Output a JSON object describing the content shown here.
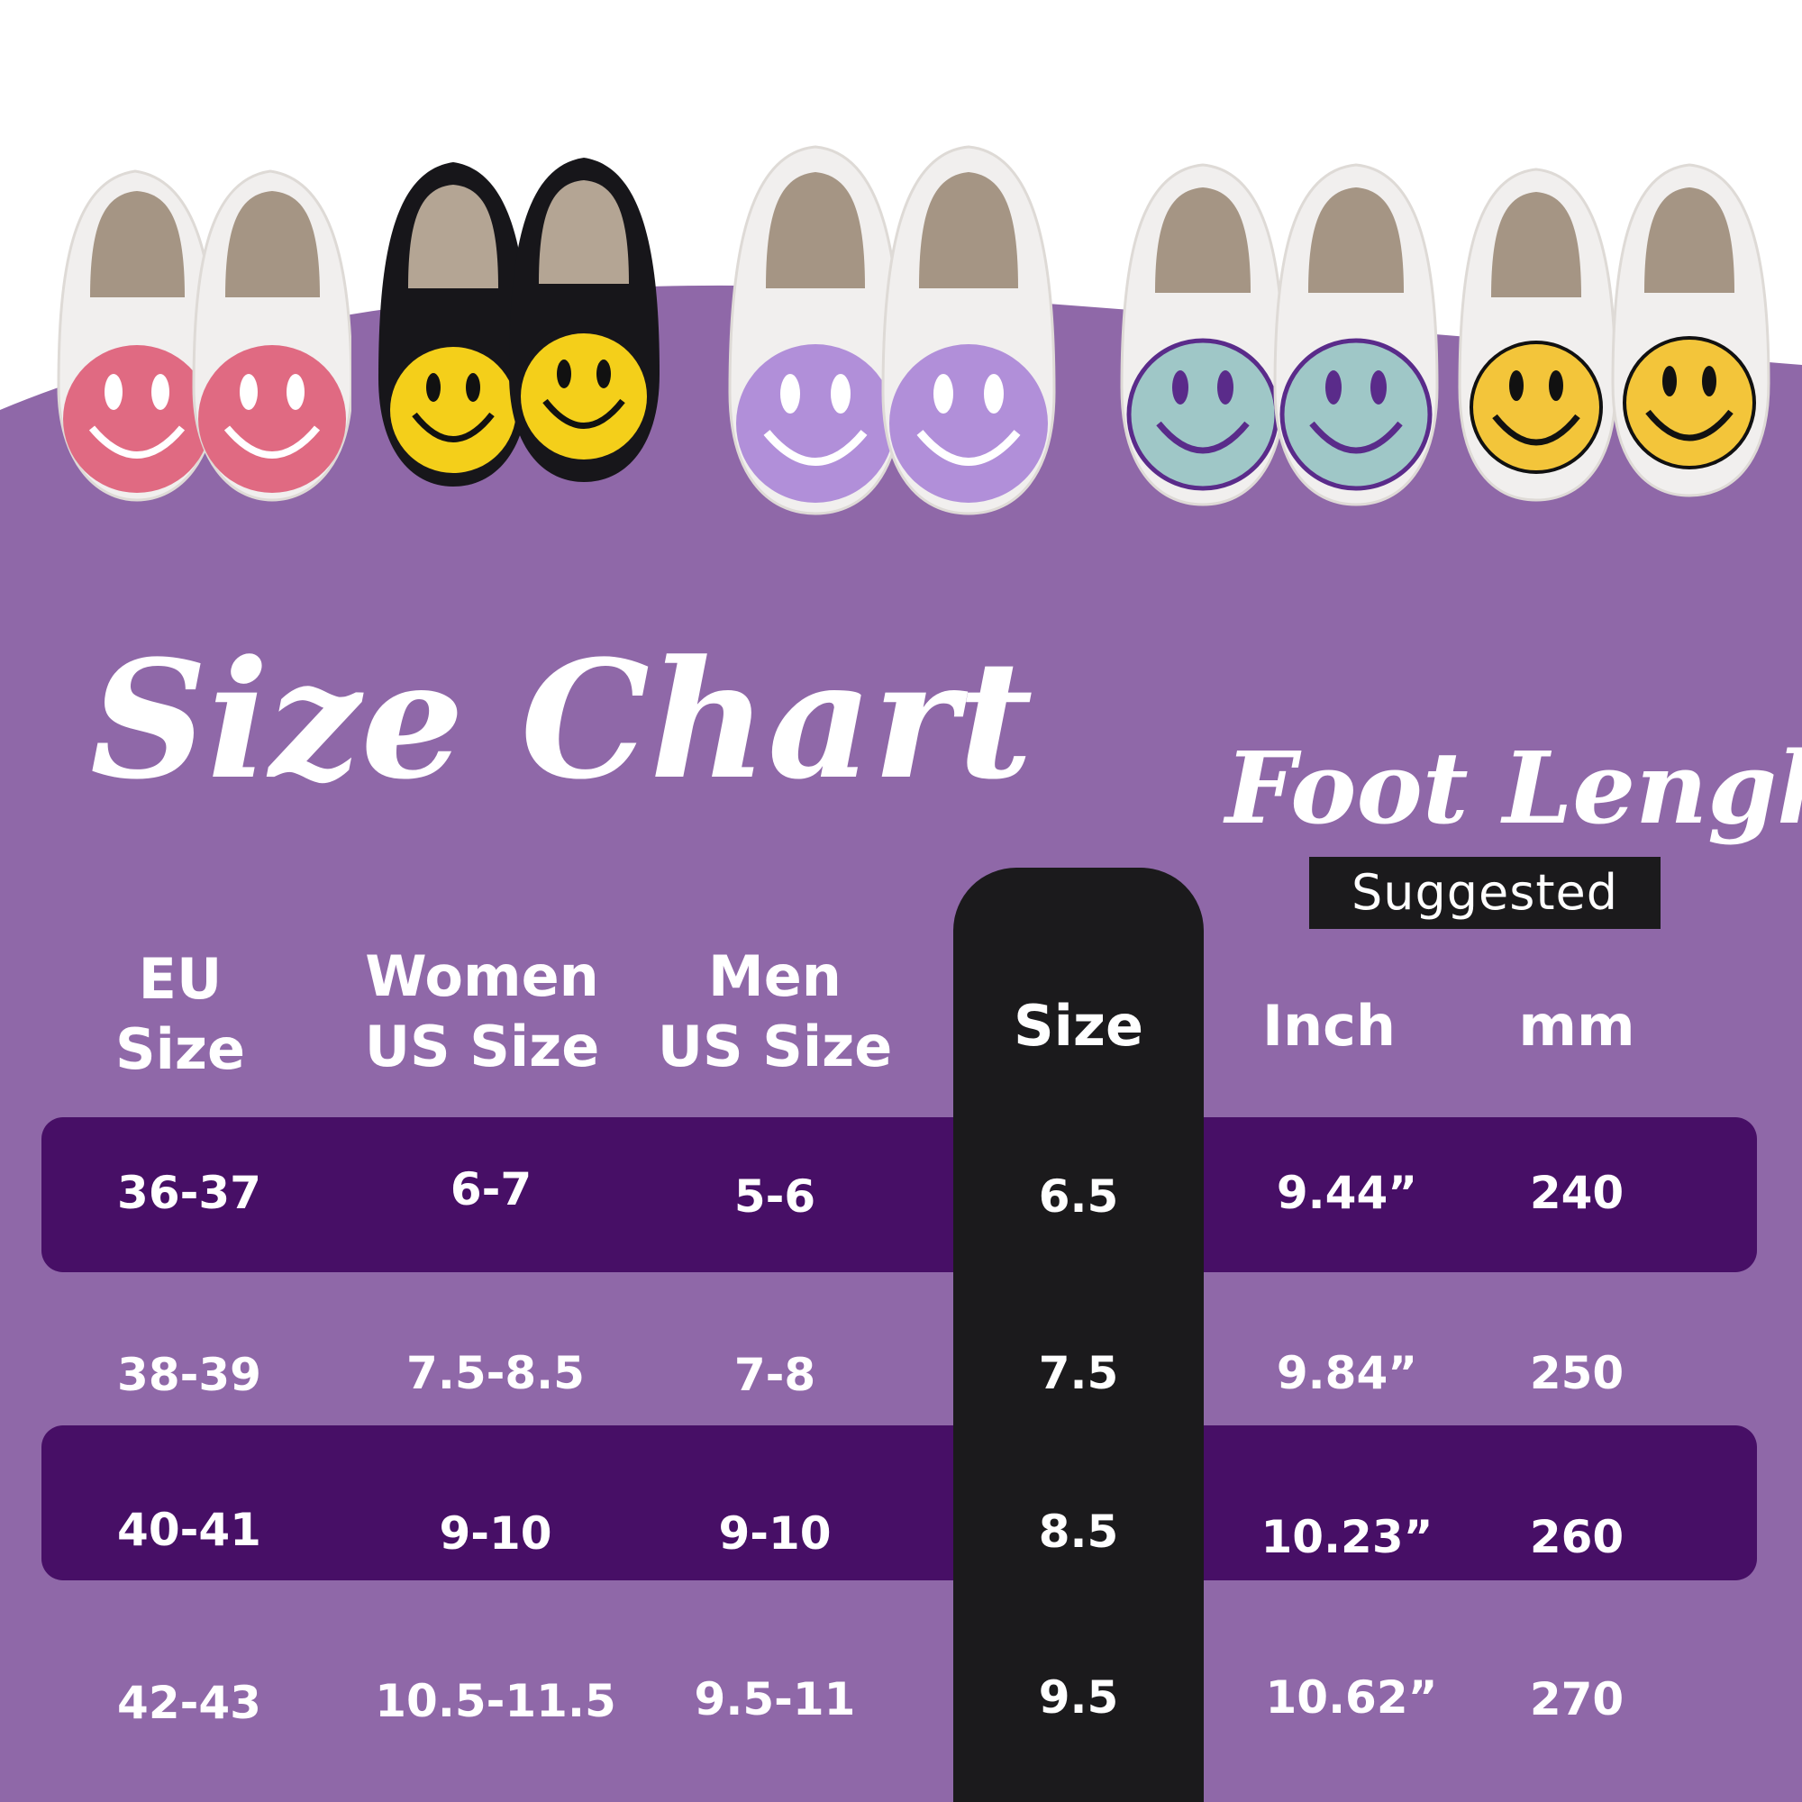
{
  "title": "Size Chart",
  "foot_length_title": "Foot Lenght",
  "suggested_label": "Suggested",
  "columns": {
    "eu": [
      "EU",
      "Size"
    ],
    "women": [
      "Women",
      "US Size"
    ],
    "men": [
      "Men",
      "US Size"
    ],
    "size": "Size",
    "inch": "Inch",
    "mm": "mm"
  },
  "rows": [
    {
      "eu": "36-37",
      "women": "6-7",
      "men": "5-6",
      "size": "6.5",
      "inch": "9.44”",
      "mm": "240"
    },
    {
      "eu": "38-39",
      "women": "7.5-8.5",
      "men": "7-8",
      "size": "7.5",
      "inch": "9.84”",
      "mm": "250"
    },
    {
      "eu": "40-41",
      "women": "9-10",
      "men": "9-10",
      "size": "8.5",
      "inch": "10.23”",
      "mm": "260"
    },
    {
      "eu": "42-43",
      "women": "10.5-11.5",
      "men": "9.5-11",
      "size": "9.5",
      "inch": "10.62”",
      "mm": "270"
    }
  ],
  "colors": {
    "background_purple": "#8f68a8",
    "band_purple": "#470f66",
    "size_column": "#1b1a1c",
    "slipper_white": "#f1efee",
    "lining_taupe": "#a59584"
  },
  "slippers": [
    {
      "name": "pink-smiley-slippers",
      "body": "#f1efee",
      "face": "#e06a82",
      "features": "#ffffff"
    },
    {
      "name": "black-yellow-smiley-slippers",
      "body": "#17161a",
      "face": "#f4cf1a",
      "features": "#111111"
    },
    {
      "name": "lavender-smiley-slippers",
      "body": "#f1efee",
      "face": "#b18fd9",
      "features": "#ffffff"
    },
    {
      "name": "mint-smiley-slippers",
      "body": "#f1efee",
      "face": "#9fc7c7",
      "features": "#5a2b8a"
    },
    {
      "name": "yellow-smiley-slippers",
      "body": "#f1efee",
      "face": "#f3c53a",
      "features": "#111111"
    }
  ]
}
